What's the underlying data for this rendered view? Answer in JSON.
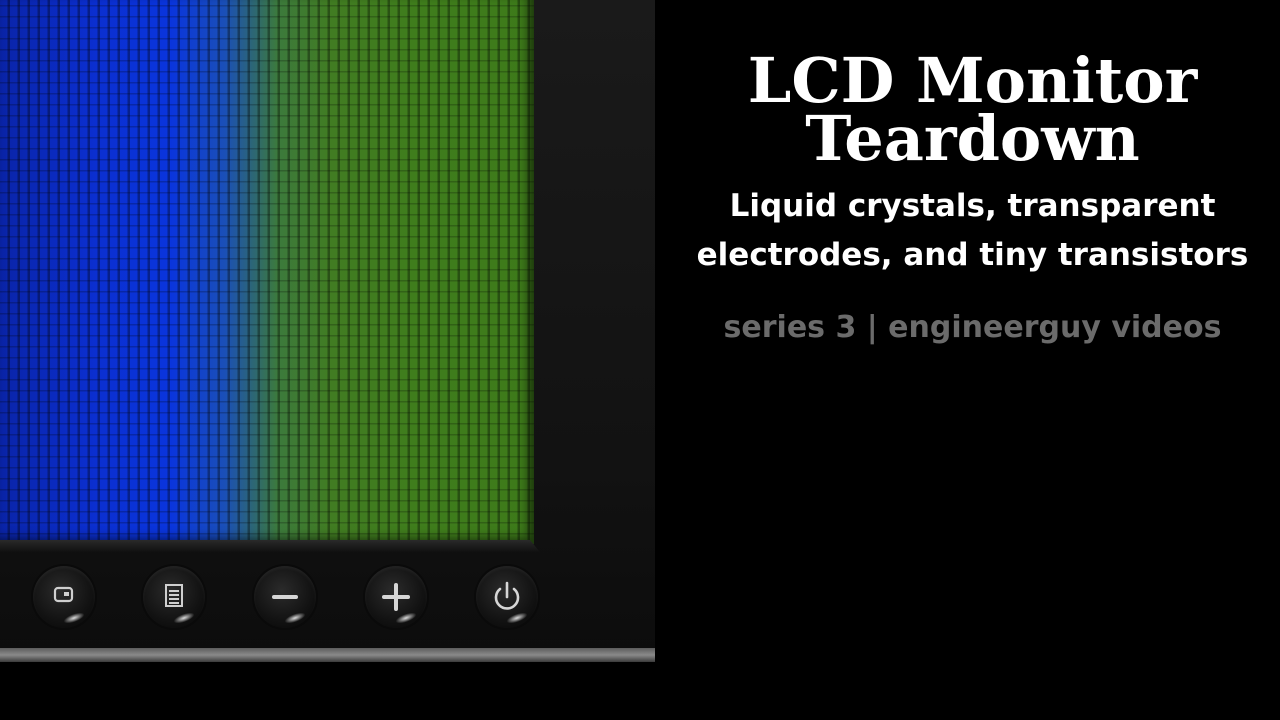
{
  "title": {
    "line1": "LCD Monitor",
    "line2": "Teardown"
  },
  "subtitle": {
    "line1": "Liquid crystals, transparent",
    "line2": "electrodes, and tiny transistors"
  },
  "series_text": "series 3 | engineerguy videos",
  "colors": {
    "background": "#000000",
    "title": "#ffffff",
    "series": "#6b6b6b",
    "screen_blue": "#0b2fd0",
    "screen_green": "#417c22"
  },
  "monitor": {
    "buttons": [
      {
        "icon": "input-source-icon"
      },
      {
        "icon": "menu-icon"
      },
      {
        "icon": "minus-icon"
      },
      {
        "icon": "plus-icon"
      },
      {
        "icon": "power-icon"
      }
    ]
  }
}
